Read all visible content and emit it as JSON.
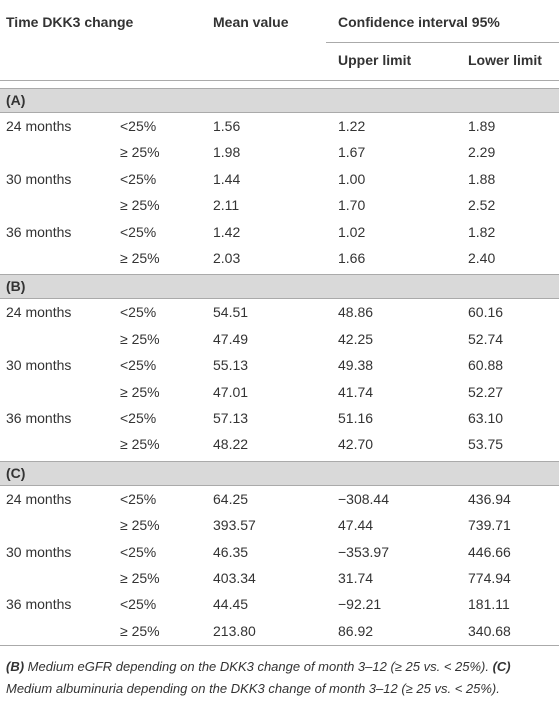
{
  "table": {
    "header": {
      "time": "Time DKK3 change",
      "mean": "Mean value",
      "ci": "Confidence interval 95%",
      "upper": "Upper limit",
      "lower": "Lower limit"
    },
    "sections": [
      {
        "label": "(A)",
        "rows": [
          {
            "time": "24 months",
            "change": "<25%",
            "mean": "1.56",
            "upper": "1.22",
            "lower": "1.89"
          },
          {
            "change": "≥ 25%",
            "mean": "1.98",
            "upper": "1.67",
            "lower": "2.29"
          },
          {
            "time": "30 months",
            "change": "<25%",
            "mean": "1.44",
            "upper": "1.00",
            "lower": "1.88"
          },
          {
            "change": "≥ 25%",
            "mean": "2.11",
            "upper": "1.70",
            "lower": "2.52"
          },
          {
            "time": "36 months",
            "change": "<25%",
            "mean": "1.42",
            "upper": "1.02",
            "lower": "1.82"
          },
          {
            "change": "≥ 25%",
            "mean": "2.03",
            "upper": "1.66",
            "lower": "2.40"
          }
        ]
      },
      {
        "label": "(B)",
        "rows": [
          {
            "time": "24 months",
            "change": "<25%",
            "mean": "54.51",
            "upper": "48.86",
            "lower": "60.16"
          },
          {
            "change": "≥ 25%",
            "mean": "47.49",
            "upper": "42.25",
            "lower": "52.74"
          },
          {
            "time": "30 months",
            "change": "<25%",
            "mean": "55.13",
            "upper": "49.38",
            "lower": "60.88"
          },
          {
            "change": "≥ 25%",
            "mean": "47.01",
            "upper": "41.74",
            "lower": "52.27"
          },
          {
            "time": "36 months",
            "change": "<25%",
            "mean": "57.13",
            "upper": "51.16",
            "lower": "63.10"
          },
          {
            "change": "≥ 25%",
            "mean": "48.22",
            "upper": "42.70",
            "lower": "53.75"
          }
        ]
      },
      {
        "label": "(C)",
        "rows": [
          {
            "time": "24 months",
            "change": "<25%",
            "mean": "64.25",
            "upper": "−308.44",
            "lower": "436.94"
          },
          {
            "change": "≥ 25%",
            "mean": "393.57",
            "upper": "47.44",
            "lower": "739.71"
          },
          {
            "time": "30 months",
            "change": "<25%",
            "mean": "46.35",
            "upper": "−353.97",
            "lower": "446.66"
          },
          {
            "change": "≥ 25%",
            "mean": "403.34",
            "upper": "31.74",
            "lower": "774.94"
          },
          {
            "time": "36 months",
            "change": "<25%",
            "mean": "44.45",
            "upper": "−92.21",
            "lower": "181.11"
          },
          {
            "change": "≥ 25%",
            "mean": "213.80",
            "upper": "86.92",
            "lower": "340.68"
          }
        ]
      }
    ]
  },
  "footnote": [
    {
      "label": "(B)",
      "text": " Medium eGFR depending on the DKK3 change of month 3–12 (≥ 25 vs. < 25%). "
    },
    {
      "label": "(C)",
      "text": " Medium albuminuria depending on the DKK3 change of month 3–12 (≥ 25 vs. < 25%)."
    }
  ]
}
